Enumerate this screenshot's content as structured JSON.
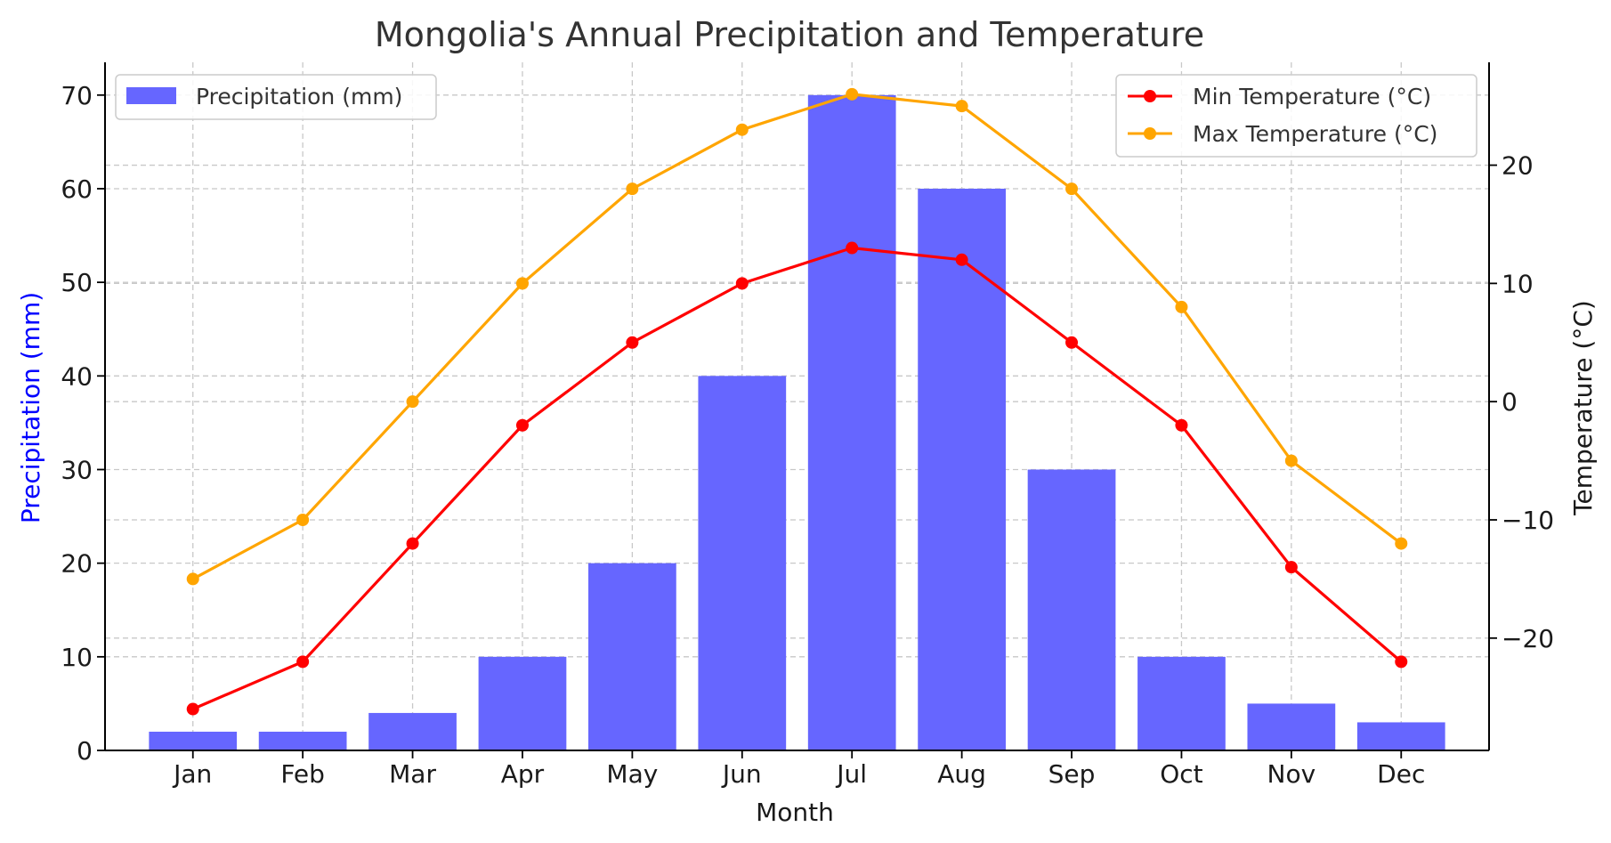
{
  "chart_data": {
    "type": "bar+line",
    "title": "Mongolia's Annual Precipitation and Temperature",
    "xlabel": "Month",
    "ylabel_left": "Precipitation (mm)",
    "ylabel_right": "Temperature (°C)",
    "categories": [
      "Jan",
      "Feb",
      "Mar",
      "Apr",
      "May",
      "Jun",
      "Jul",
      "Aug",
      "Sep",
      "Oct",
      "Nov",
      "Dec"
    ],
    "bar_series": {
      "name": "Precipitation (mm)",
      "values": [
        2,
        2,
        4,
        10,
        20,
        40,
        70,
        60,
        30,
        10,
        5,
        3
      ],
      "color": "#6666ff"
    },
    "line_series": [
      {
        "name": "Min Temperature (°C)",
        "values": [
          -26,
          -22,
          -12,
          -2,
          5,
          10,
          13,
          12,
          5,
          -2,
          -14,
          -22
        ],
        "color": "#ff0000"
      },
      {
        "name": "Max Temperature (°C)",
        "values": [
          -15,
          -10,
          0,
          10,
          18,
          23,
          26,
          25,
          18,
          8,
          -5,
          -12
        ],
        "color": "#ffa500"
      }
    ],
    "ylim_left": [
      0,
      73.5
    ],
    "yticks_left": [
      0,
      10,
      20,
      30,
      40,
      50,
      60,
      70
    ],
    "ylim_right": [
      -29.5,
      28.7
    ],
    "yticks_right": [
      -20,
      -10,
      0,
      10,
      20
    ],
    "yticklabels_right": [
      "−20",
      "−10",
      "0",
      "10",
      "20"
    ],
    "grid": true,
    "legend_left": "top-left",
    "legend_right": "top-right",
    "ylabel_left_color": "#0000ff"
  }
}
